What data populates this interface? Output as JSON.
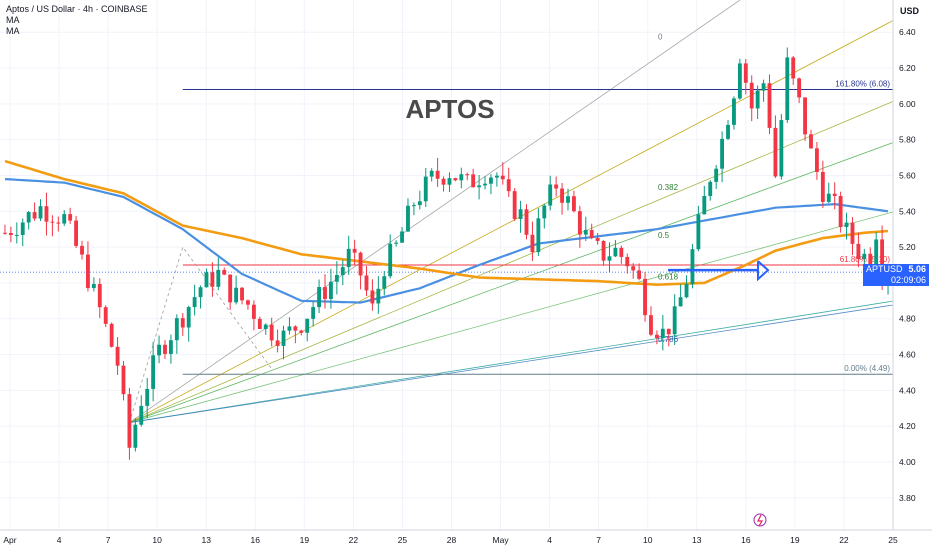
{
  "header": {
    "symbol_title": "Aptos / US Dollar · 4h · COINBASE",
    "indicator_1": "MA",
    "indicator_2": "MA",
    "currency": "USD"
  },
  "annotation": {
    "big_label": "APTOS"
  },
  "last_price": {
    "symbol": "APTUSD",
    "value": "5.06",
    "countdown": "02:09:06"
  },
  "colors": {
    "up": "#089981",
    "down": "#f23645",
    "ma_fast": "#4a90e2",
    "ma_slow": "#f39c12",
    "fib_top": "#283593",
    "fib_mid": "#f23645",
    "fib_base": "#607d8b",
    "fan": "#2962ff"
  },
  "chart_data": {
    "type": "candlestick",
    "title": "Aptos / US Dollar · 4h · COINBASE",
    "xlabel": "",
    "ylabel": "USD",
    "ylim": [
      3.62,
      6.58
    ],
    "x_ticks": [
      "Apr",
      "4",
      "7",
      "10",
      "13",
      "16",
      "19",
      "22",
      "25",
      "28",
      "May",
      "4",
      "7",
      "10",
      "13",
      "16",
      "19",
      "22",
      "25"
    ],
    "y_ticks": [
      "6.40",
      "6.20",
      "6.00",
      "5.80",
      "5.60",
      "5.40",
      "5.20",
      "5.00",
      "4.80",
      "4.60",
      "4.40",
      "4.20",
      "4.00",
      "3.80"
    ],
    "price_path": [
      [
        0,
        5.28
      ],
      [
        6,
        5.42
      ],
      [
        10,
        5.36
      ],
      [
        13,
        5.12
      ],
      [
        16,
        4.85
      ],
      [
        19,
        4.55
      ],
      [
        21,
        4.08
      ],
      [
        23,
        4.35
      ],
      [
        26,
        4.62
      ],
      [
        30,
        4.82
      ],
      [
        33,
        4.98
      ],
      [
        36,
        5.05
      ],
      [
        38,
        4.95
      ],
      [
        41,
        4.88
      ],
      [
        44,
        4.75
      ],
      [
        47,
        4.7
      ],
      [
        50,
        4.78
      ],
      [
        53,
        4.92
      ],
      [
        56,
        5.05
      ],
      [
        58,
        5.15
      ],
      [
        60,
        5.05
      ],
      [
        62,
        4.85
      ],
      [
        64,
        5.1
      ],
      [
        66,
        5.2
      ],
      [
        69,
        5.45
      ],
      [
        72,
        5.58
      ],
      [
        75,
        5.62
      ],
      [
        78,
        5.55
      ],
      [
        81,
        5.62
      ],
      [
        83,
        5.6
      ],
      [
        85,
        5.45
      ],
      [
        87,
        5.38
      ],
      [
        89,
        5.22
      ],
      [
        91,
        5.42
      ],
      [
        93,
        5.55
      ],
      [
        95,
        5.45
      ],
      [
        97,
        5.32
      ],
      [
        99,
        5.2
      ],
      [
        101,
        5.16
      ],
      [
        103,
        5.18
      ],
      [
        105,
        5.12
      ],
      [
        107,
        5.0
      ],
      [
        109,
        4.78
      ],
      [
        111,
        4.72
      ],
      [
        113,
        4.8
      ],
      [
        115,
        5.02
      ],
      [
        117,
        5.32
      ],
      [
        119,
        5.6
      ],
      [
        121,
        5.8
      ],
      [
        123,
        6.08
      ],
      [
        124,
        6.28
      ],
      [
        126,
        5.98
      ],
      [
        128,
        6.12
      ],
      [
        129,
        5.9
      ],
      [
        130,
        5.6
      ],
      [
        132,
        6.22
      ],
      [
        134,
        6.0
      ],
      [
        136,
        5.72
      ],
      [
        138,
        5.52
      ],
      [
        140,
        5.42
      ],
      [
        142,
        5.28
      ],
      [
        144,
        5.18
      ],
      [
        146,
        5.12
      ],
      [
        147,
        5.3
      ],
      [
        148,
        5.08
      ],
      [
        149,
        5.06
      ]
    ],
    "moving_averages": [
      {
        "name": "MA",
        "color": "#4a90e2",
        "points": [
          [
            0,
            5.58
          ],
          [
            10,
            5.56
          ],
          [
            20,
            5.48
          ],
          [
            30,
            5.3
          ],
          [
            40,
            5.05
          ],
          [
            50,
            4.9
          ],
          [
            60,
            4.89
          ],
          [
            70,
            4.97
          ],
          [
            80,
            5.1
          ],
          [
            90,
            5.22
          ],
          [
            100,
            5.26
          ],
          [
            110,
            5.3
          ],
          [
            120,
            5.36
          ],
          [
            130,
            5.42
          ],
          [
            140,
            5.44
          ],
          [
            149,
            5.4
          ]
        ]
      },
      {
        "name": "MA",
        "color": "#f39c12",
        "points": [
          [
            0,
            5.68
          ],
          [
            10,
            5.58
          ],
          [
            20,
            5.5
          ],
          [
            30,
            5.32
          ],
          [
            40,
            5.25
          ],
          [
            50,
            5.16
          ],
          [
            60,
            5.12
          ],
          [
            70,
            5.08
          ],
          [
            80,
            5.03
          ],
          [
            90,
            5.02
          ],
          [
            100,
            5.01
          ],
          [
            110,
            4.99
          ],
          [
            118,
            5.0
          ],
          [
            125,
            5.1
          ],
          [
            130,
            5.18
          ],
          [
            138,
            5.25
          ],
          [
            145,
            5.28
          ],
          [
            149,
            5.29
          ]
        ]
      }
    ],
    "fib_levels": [
      {
        "label": "161.80% (6.08)",
        "value": 6.08,
        "color": "#283593"
      },
      {
        "label": "61.80% (5.10)",
        "value": 5.1,
        "color": "#f23645"
      },
      {
        "label": "0.00% (4.49)",
        "value": 4.49,
        "color": "#607d8b"
      }
    ],
    "fan_labels": [
      {
        "label": "0",
        "value": 6.36
      },
      {
        "label": "0.382",
        "value": 5.52
      },
      {
        "label": "0.5",
        "value": 5.25
      },
      {
        "label": "0.618",
        "value": 5.02
      },
      {
        "label": "0.786",
        "value": 4.67
      }
    ],
    "current_price": 5.06,
    "grid": true,
    "legend_position": "top-left"
  }
}
